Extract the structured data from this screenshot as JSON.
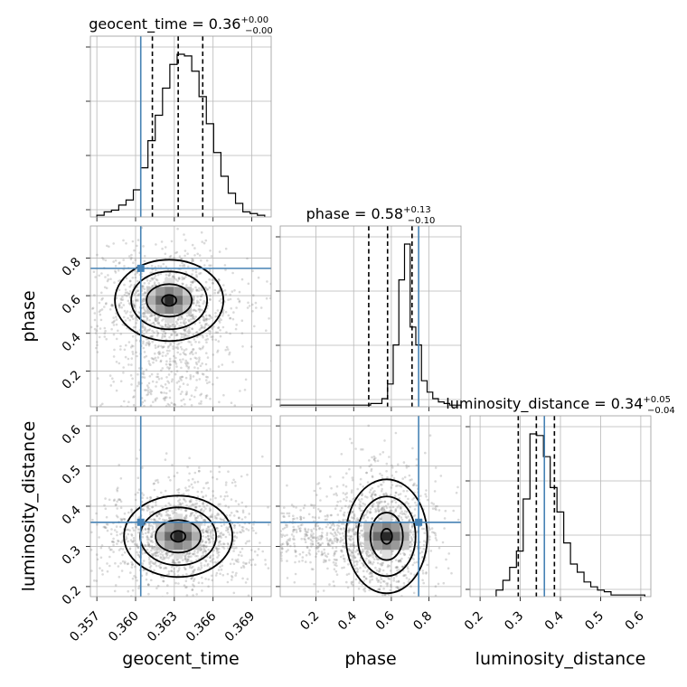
{
  "figure": {
    "titles": {
      "geocent_time": {
        "label": "geocent_time = 0.36",
        "sup": "+0.00",
        "sub": "−0.00"
      },
      "phase": {
        "label": "phase = 0.58",
        "sup": "+0.13",
        "sub": "−0.10"
      },
      "luminosity_distance": {
        "label": "luminosity_distance = 0.34",
        "sup": "+0.05",
        "sub": "−0.04"
      }
    },
    "xlabels": {
      "geocent_time": "geocent_time",
      "phase": "phase",
      "luminosity_distance": "luminosity_distance"
    },
    "ylabels": {
      "phase": "phase",
      "luminosity_distance": "luminosity_distance"
    }
  },
  "chart_data": {
    "type": "corner",
    "grid": true,
    "colors": {
      "truth": "#4682b4",
      "hist": "#000000",
      "grid": "#b8b8b8",
      "points": "#7a7a7a"
    },
    "parameters": [
      {
        "name": "geocent_time",
        "range": [
          0.3565,
          0.3705
        ],
        "ticks": [
          0.357,
          0.36,
          0.363,
          0.366,
          0.369
        ],
        "tick_labels": [
          "0.357",
          "0.360",
          "0.363",
          "0.366",
          "0.369"
        ],
        "truth": 0.3604,
        "median": 0.3633,
        "quantiles": [
          0.3613,
          0.3633,
          0.3652
        ],
        "hist_edges_range": [
          0.357,
          0.37
        ],
        "hist_counts": [
          1,
          3,
          4,
          7,
          10,
          16,
          29,
          45,
          60,
          76,
          90,
          96,
          95,
          86,
          71,
          55,
          38,
          24,
          14,
          8,
          3,
          2,
          1
        ]
      },
      {
        "name": "phase",
        "range": [
          0.01,
          0.97
        ],
        "ticks": [
          0.2,
          0.4,
          0.6,
          0.8
        ],
        "tick_labels": [
          "0.2",
          "0.4",
          "0.6",
          "0.8"
        ],
        "truth": 0.745,
        "median": 0.58,
        "quantiles": [
          0.48,
          0.58,
          0.71
        ],
        "hist_edges_range": [
          0.01,
          0.97
        ],
        "hist_counts": [
          1,
          1,
          1,
          1,
          1,
          1,
          1,
          1,
          1,
          1,
          1,
          1,
          1,
          1,
          1,
          1,
          2,
          2,
          5,
          14,
          38,
          78,
          100,
          49,
          38,
          16,
          9,
          5,
          3,
          2,
          1,
          1
        ]
      },
      {
        "name": "luminosity_distance",
        "range": [
          0.175,
          0.625
        ],
        "ticks": [
          0.2,
          0.3,
          0.4,
          0.5,
          0.6
        ],
        "tick_labels": [
          "0.2",
          "0.3",
          "0.4",
          "0.5",
          "0.6"
        ],
        "truth": 0.36,
        "median": 0.34,
        "quantiles": [
          0.295,
          0.34,
          0.385
        ],
        "hist_edges_range": [
          0.24,
          0.61
        ],
        "hist_counts": [
          4,
          10,
          18,
          28,
          60,
          100,
          99,
          86,
          67,
          52,
          33,
          20,
          15,
          9,
          6,
          4,
          3,
          1,
          1,
          1,
          1,
          1
        ]
      }
    ],
    "pairs": [
      {
        "x": "geocent_time",
        "y": "phase",
        "peak": [
          0.3626,
          0.575
        ]
      },
      {
        "x": "geocent_time",
        "y": "luminosity_distance",
        "peak": [
          0.3633,
          0.325
        ]
      },
      {
        "x": "phase",
        "y": "luminosity_distance",
        "peak": [
          0.575,
          0.325
        ]
      }
    ]
  }
}
